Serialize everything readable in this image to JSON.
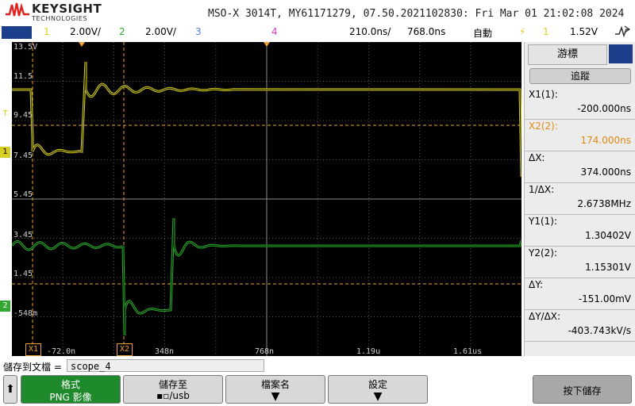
{
  "header": {
    "brand": "KEYSIGHT",
    "brand_sub": "TECHNOLOGIES",
    "title": "MSO-X 3014T, MY61171279, 07.50.2021102830: Fri Mar 01 21:02:08 2024"
  },
  "statusbar": {
    "ch1_num": "1",
    "ch1_scale": "2.00V/",
    "ch2_num": "2",
    "ch2_scale": "2.00V/",
    "ch3_num": "3",
    "ch4_num": "4",
    "timebase": "210.0ns/",
    "delay": "768.0ns",
    "trigger_mode": "自動",
    "trigger_icon": "trigger-edge-icon",
    "trigger_source": "1",
    "trigger_level": "1.52V",
    "run_icon": "signal-icon"
  },
  "screen": {
    "volt_labels": [
      "13.5V",
      "11.5",
      "9.45",
      "7.45",
      "5.45",
      "3.45",
      "1.45",
      "-548m"
    ],
    "time_labels": [
      "-72.0n",
      "348n",
      "768n",
      "1.19u",
      "1.61us"
    ],
    "cursor_x1": "X1",
    "cursor_x2": "X2",
    "ch1_marker": "1",
    "ch2_marker": "2",
    "trigger_marker": "T"
  },
  "panel": {
    "tab_label": "游標",
    "mode_label": "追蹤",
    "measurements": [
      {
        "label": "X1(1):",
        "value": "-200.000ns"
      },
      {
        "label": "X2(2):",
        "value": "174.000ns"
      },
      {
        "label": "ΔX:",
        "value": "374.000ns"
      },
      {
        "label": "1/ΔX:",
        "value": "2.6738MHz"
      },
      {
        "label": "Y1(1):",
        "value": "1.30402V"
      },
      {
        "label": "Y2(2):",
        "value": "1.15301V"
      },
      {
        "label": "ΔY:",
        "value": "-151.00mV"
      },
      {
        "label": "ΔY/ΔX:",
        "value": "-403.743kV/s"
      }
    ]
  },
  "save": {
    "label": "儲存到文檔 =",
    "filename": "scope_4"
  },
  "softkeys": {
    "format_l1": "格式",
    "format_l2": "PNG 影像",
    "saveto_l1": "儲存至",
    "saveto_l2": "/usb",
    "filename_l1": "檔案名",
    "settings_l1": "設定",
    "press_save": "按下儲存"
  },
  "colors": {
    "ch1": "#d8d020",
    "ch2": "#2ea82e",
    "ch3": "#4f7fd8",
    "ch4": "#d040c0",
    "cursor": "#f0a030",
    "grid": "#555555"
  }
}
